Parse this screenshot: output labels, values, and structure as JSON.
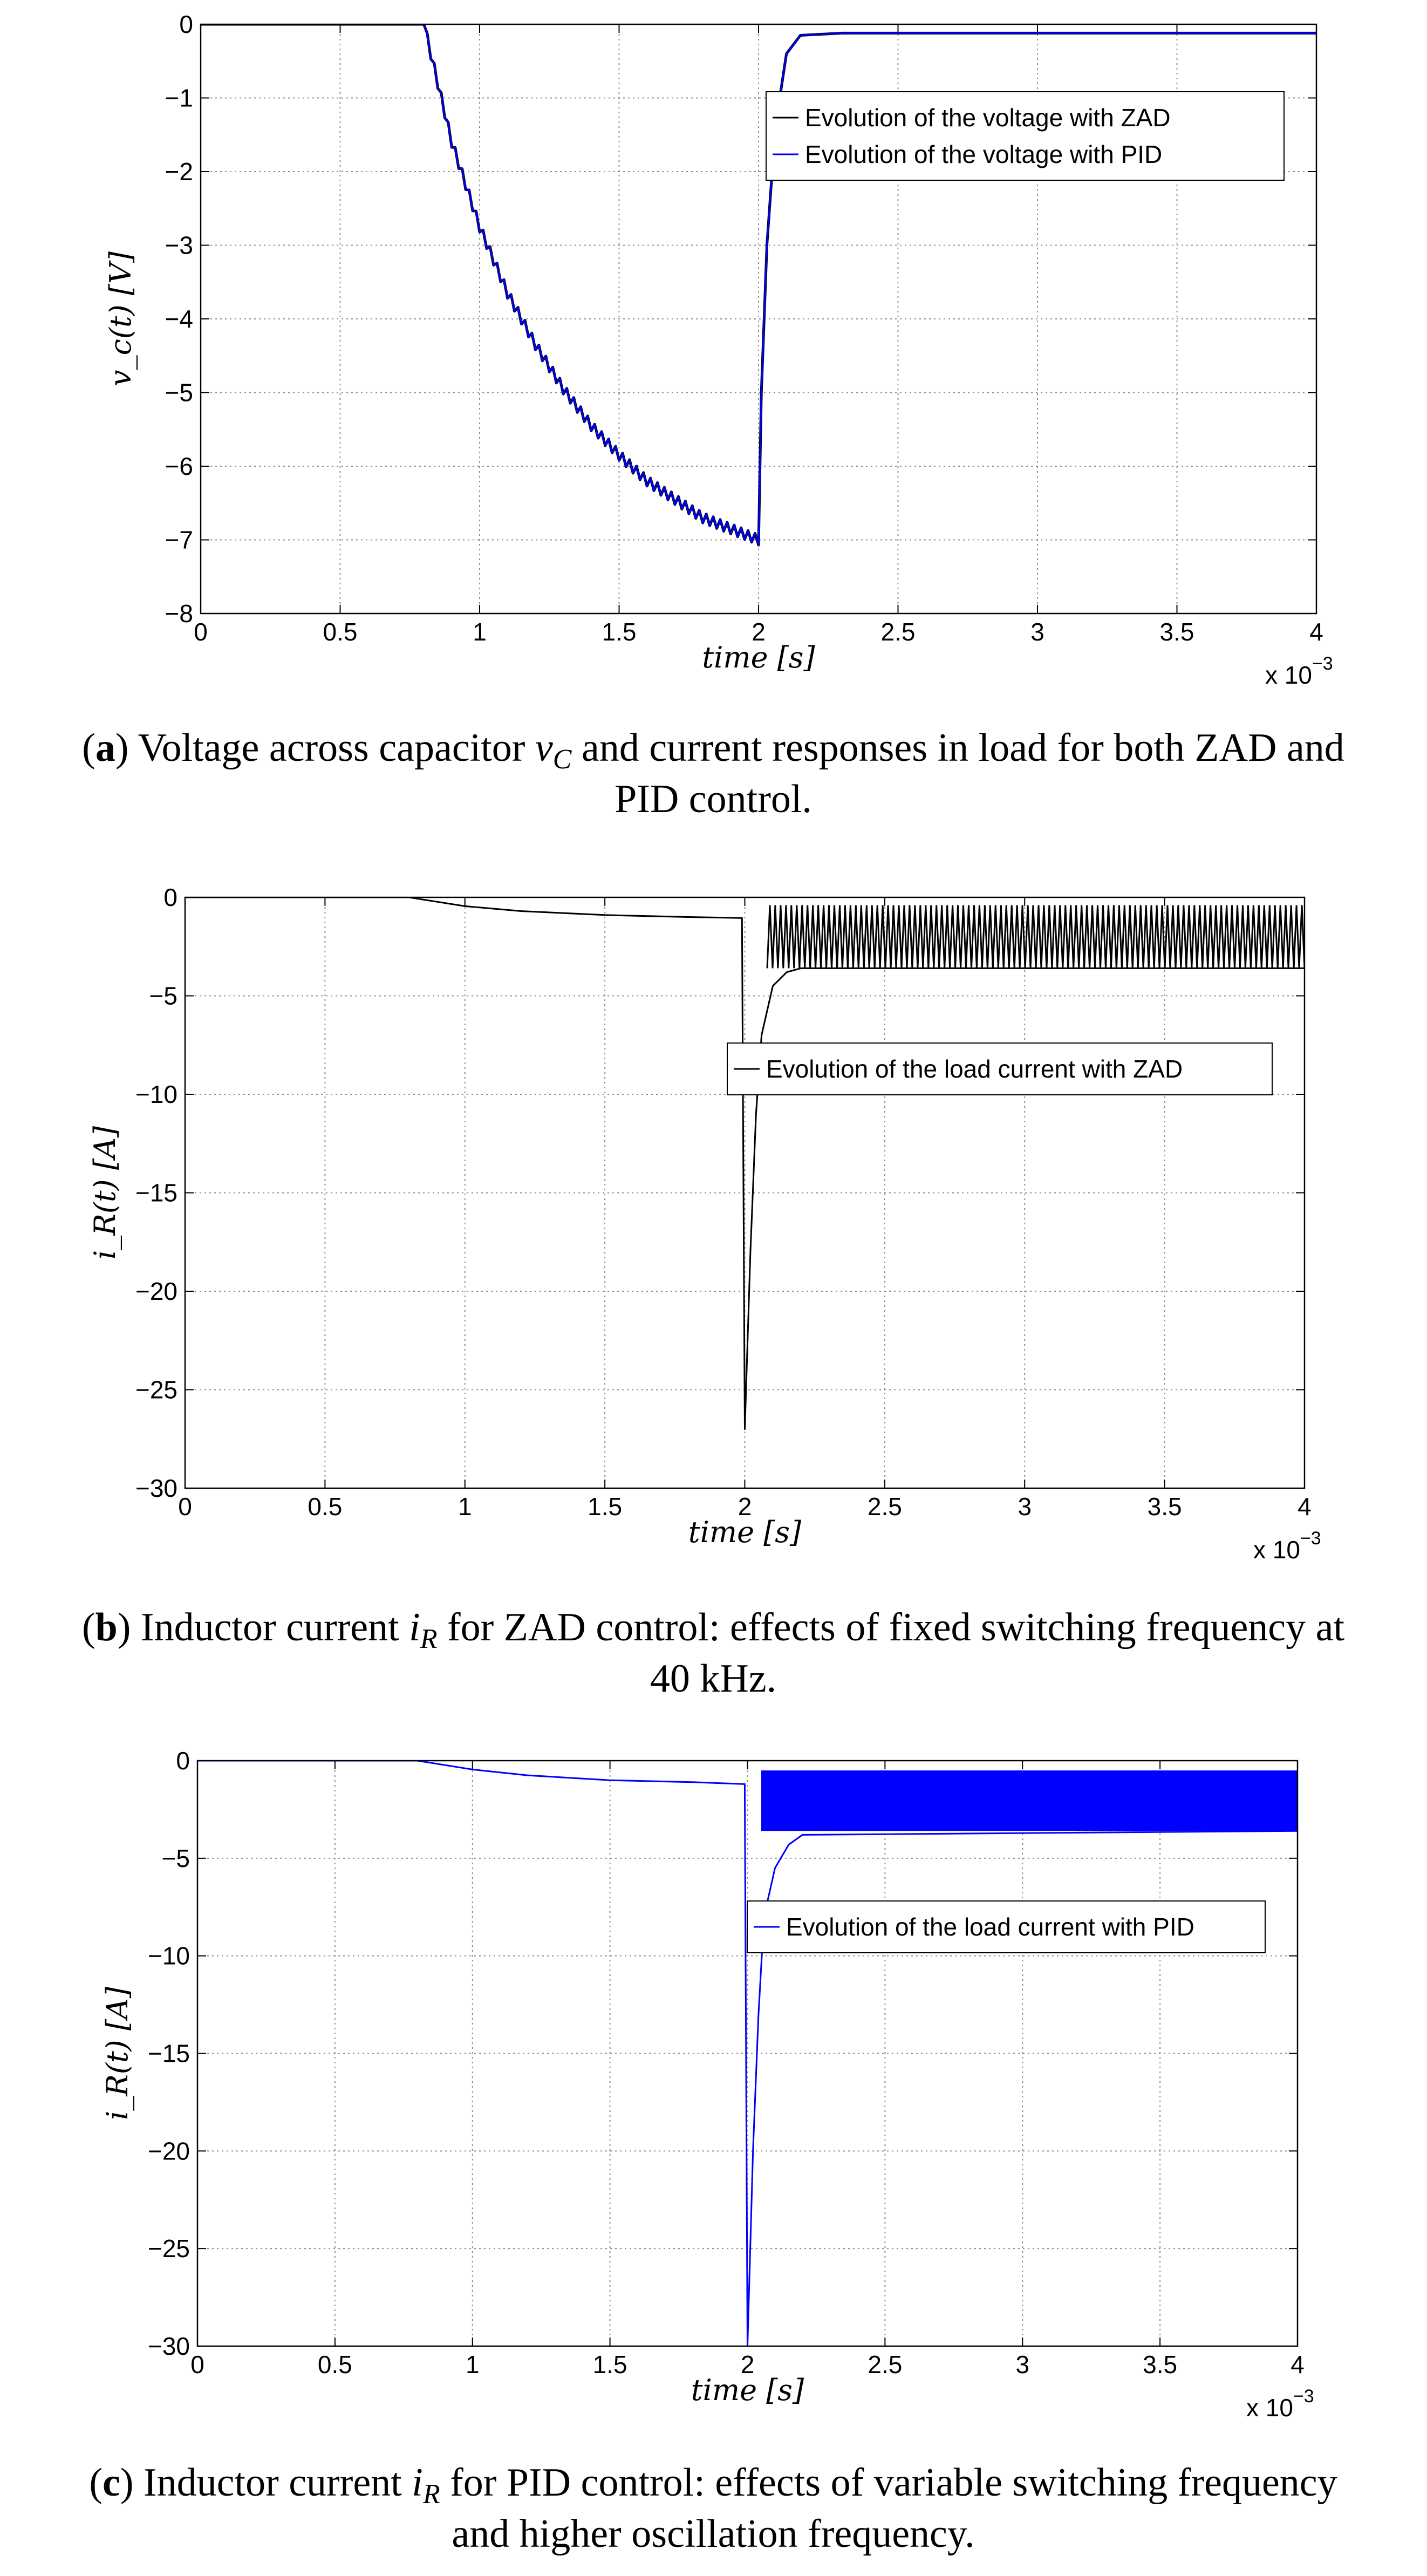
{
  "chart_data": [
    {
      "type": "line",
      "panel": "a",
      "xlabel": "time [s]",
      "ylabel": "v_c(t) [V]",
      "xlim": [
        0,
        4
      ],
      "ylim": [
        -8,
        0
      ],
      "x_multiplier": "x 10",
      "x_multiplier_exp": "−3",
      "x_ticks": [
        "0",
        "0.5",
        "1",
        "1.5",
        "2",
        "2.5",
        "3",
        "3.5",
        "4"
      ],
      "y_ticks": [
        "0",
        "−1",
        "−2",
        "−3",
        "−4",
        "−5",
        "−6",
        "−7",
        "−8"
      ],
      "grid": true,
      "legend_position": "top-right",
      "series": [
        {
          "name": "Evolution of the voltage with ZAD",
          "color": "#000000",
          "points": [
            [
              0,
              0
            ],
            [
              0.8,
              0
            ],
            [
              0.9,
              -1.6
            ],
            [
              1.0,
              -2.75
            ],
            [
              1.1,
              -3.65
            ],
            [
              1.2,
              -4.35
            ],
            [
              1.3,
              -4.95
            ],
            [
              1.4,
              -5.45
            ],
            [
              1.5,
              -5.85
            ],
            [
              1.6,
              -6.2
            ],
            [
              1.7,
              -6.45
            ],
            [
              1.8,
              -6.7
            ],
            [
              1.9,
              -6.85
            ],
            [
              2.0,
              -7.0
            ],
            [
              2.01,
              -5.0
            ],
            [
              2.03,
              -3.0
            ],
            [
              2.06,
              -1.4
            ],
            [
              2.1,
              -0.4
            ],
            [
              2.15,
              -0.15
            ],
            [
              2.3,
              -0.12
            ],
            [
              4.0,
              -0.12
            ]
          ]
        },
        {
          "name": "Evolution of the voltage with PID",
          "color": "#0000ff",
          "points": [
            [
              0,
              0
            ],
            [
              0.8,
              0
            ],
            [
              0.9,
              -1.6
            ],
            [
              1.0,
              -2.75
            ],
            [
              1.1,
              -3.65
            ],
            [
              1.2,
              -4.35
            ],
            [
              1.3,
              -4.95
            ],
            [
              1.4,
              -5.45
            ],
            [
              1.5,
              -5.85
            ],
            [
              1.6,
              -6.2
            ],
            [
              1.7,
              -6.45
            ],
            [
              1.8,
              -6.7
            ],
            [
              1.9,
              -6.85
            ],
            [
              2.0,
              -7.0
            ],
            [
              2.01,
              -5.0
            ],
            [
              2.03,
              -3.0
            ],
            [
              2.06,
              -1.4
            ],
            [
              2.1,
              -0.4
            ],
            [
              2.15,
              -0.15
            ],
            [
              2.3,
              -0.12
            ],
            [
              4.0,
              -0.12
            ]
          ]
        }
      ]
    },
    {
      "type": "line",
      "panel": "b",
      "xlabel": "time [s]",
      "ylabel": "i_R(t) [A]",
      "xlim": [
        0,
        4
      ],
      "ylim": [
        -30,
        0
      ],
      "x_multiplier": "x 10",
      "x_multiplier_exp": "−3",
      "x_ticks": [
        "0",
        "0.5",
        "1",
        "1.5",
        "2",
        "2.5",
        "3",
        "3.5",
        "4"
      ],
      "y_ticks": [
        "0",
        "−5",
        "−10",
        "−15",
        "−20",
        "−25",
        "−30"
      ],
      "grid": true,
      "legend_position": "top-right",
      "series": [
        {
          "name": "Evolution of the load current with ZAD",
          "color": "#000000",
          "points": [
            [
              0,
              0
            ],
            [
              0.8,
              0
            ],
            [
              1.0,
              -0.45
            ],
            [
              1.2,
              -0.7
            ],
            [
              1.5,
              -0.9
            ],
            [
              1.8,
              -1.0
            ],
            [
              1.99,
              -1.05
            ],
            [
              2.0,
              -27.0
            ],
            [
              2.02,
              -18.0
            ],
            [
              2.04,
              -11.0
            ],
            [
              2.06,
              -7.0
            ],
            [
              2.1,
              -4.5
            ],
            [
              2.15,
              -3.8
            ],
            [
              2.2,
              -3.6
            ],
            [
              4.0,
              -3.6
            ]
          ],
          "oscillation_band": {
            "x_start": 2.08,
            "x_end": 4.0,
            "min": -3.6,
            "max": -0.4
          }
        }
      ]
    },
    {
      "type": "line",
      "panel": "c",
      "xlabel": "time [s]",
      "ylabel": "i_R(t) [A]",
      "xlim": [
        0,
        4
      ],
      "ylim": [
        -30,
        0
      ],
      "x_multiplier": "x 10",
      "x_multiplier_exp": "−3",
      "x_ticks": [
        "0",
        "0.5",
        "1",
        "1.5",
        "2",
        "2.5",
        "3",
        "3.5",
        "4"
      ],
      "y_ticks": [
        "0",
        "−5",
        "−10",
        "−15",
        "−20",
        "−25",
        "−30"
      ],
      "grid": true,
      "legend_position": "top-right",
      "series": [
        {
          "name": "Evolution of the load current with PID",
          "color": "#0000ff",
          "points": [
            [
              0,
              0
            ],
            [
              0.8,
              0
            ],
            [
              1.0,
              -0.45
            ],
            [
              1.2,
              -0.75
            ],
            [
              1.5,
              -1.0
            ],
            [
              1.8,
              -1.1
            ],
            [
              1.99,
              -1.2
            ],
            [
              2.0,
              -30.0
            ],
            [
              2.02,
              -20.0
            ],
            [
              2.04,
              -13.0
            ],
            [
              2.06,
              -8.0
            ],
            [
              2.1,
              -5.5
            ],
            [
              2.15,
              -4.3
            ],
            [
              2.2,
              -3.8
            ],
            [
              4.0,
              -3.6
            ]
          ],
          "oscillation_band": {
            "x_start": 2.05,
            "x_end": 4.0,
            "min": -3.6,
            "max": -0.5
          }
        }
      ]
    }
  ],
  "captions": [
    {
      "label": "a",
      "line1_pre": "Voltage across capacitor ",
      "line1_math": "v",
      "line1_sub": "C",
      "line1_post": " and current responses in load for both ZAD and",
      "line2": "PID control."
    },
    {
      "label": "b",
      "line1_pre": "Inductor current ",
      "line1_math": "i",
      "line1_sub": "R",
      "line1_post": " for ZAD control: effects of fixed switching frequency at",
      "line2": "40 kHz."
    },
    {
      "label": "c",
      "line1_pre": "Inductor current ",
      "line1_math": "i",
      "line1_sub": "R",
      "line1_post": " for PID control: effects of variable switching frequency",
      "line2": "and higher oscillation frequency."
    }
  ],
  "colors": {
    "grid": "#8c8c8c",
    "zad": "#000000",
    "pid": "#0000ff"
  }
}
